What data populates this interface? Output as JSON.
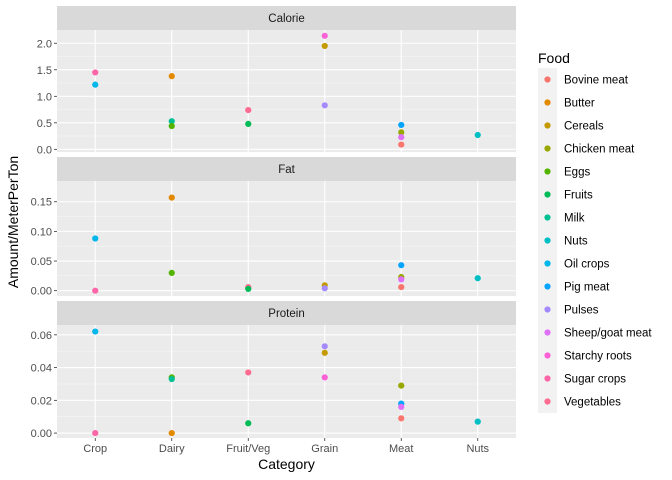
{
  "chart_data": {
    "type": "scatter",
    "layout": "facet_wrap_vertical",
    "xlabel": "Category",
    "ylabel": "Amount/MeterPerTon",
    "categories": [
      "Crop",
      "Dairy",
      "Fruit/Veg",
      "Grain",
      "Meat",
      "Nuts"
    ],
    "legend": {
      "title": "Food",
      "position": "right",
      "items": [
        {
          "name": "Bovine meat",
          "color": "#F8766D"
        },
        {
          "name": "Butter",
          "color": "#E38900"
        },
        {
          "name": "Cereals",
          "color": "#C49A00"
        },
        {
          "name": "Chicken meat",
          "color": "#99A800"
        },
        {
          "name": "Eggs",
          "color": "#53B400"
        },
        {
          "name": "Fruits",
          "color": "#00BC56"
        },
        {
          "name": "Milk",
          "color": "#00C094"
        },
        {
          "name": "Nuts",
          "color": "#00BFC4"
        },
        {
          "name": "Oil crops",
          "color": "#00B6EB"
        },
        {
          "name": "Pig meat",
          "color": "#06A4FF"
        },
        {
          "name": "Pulses",
          "color": "#A58AFF"
        },
        {
          "name": "Sheep/goat meat",
          "color": "#DF70F8"
        },
        {
          "name": "Starchy roots",
          "color": "#FB61D7"
        },
        {
          "name": "Sugar crops",
          "color": "#FF66A8"
        },
        {
          "name": "Vegetables",
          "color": "#FF6C91"
        }
      ]
    },
    "panels": [
      {
        "title": "Calorie",
        "ylim": [
          -0.05,
          2.25
        ],
        "yticks": [
          0.0,
          0.5,
          1.0,
          1.5,
          2.0
        ],
        "ytick_labels": [
          "0.0",
          "0.5",
          "1.0",
          "1.5",
          "2.0"
        ],
        "points": [
          {
            "x": "Crop",
            "y": 1.45,
            "food": "Sugar crops"
          },
          {
            "x": "Crop",
            "y": 1.22,
            "food": "Oil crops"
          },
          {
            "x": "Dairy",
            "y": 1.38,
            "food": "Butter"
          },
          {
            "x": "Dairy",
            "y": 0.53,
            "food": "Milk"
          },
          {
            "x": "Dairy",
            "y": 0.44,
            "food": "Eggs"
          },
          {
            "x": "Fruit/Veg",
            "y": 0.74,
            "food": "Vegetables"
          },
          {
            "x": "Fruit/Veg",
            "y": 0.48,
            "food": "Fruits"
          },
          {
            "x": "Grain",
            "y": 2.14,
            "food": "Starchy roots"
          },
          {
            "x": "Grain",
            "y": 1.95,
            "food": "Cereals"
          },
          {
            "x": "Grain",
            "y": 0.83,
            "food": "Pulses"
          },
          {
            "x": "Meat",
            "y": 0.46,
            "food": "Pig meat"
          },
          {
            "x": "Meat",
            "y": 0.32,
            "food": "Chicken meat"
          },
          {
            "x": "Meat",
            "y": 0.23,
            "food": "Sheep/goat meat"
          },
          {
            "x": "Meat",
            "y": 0.09,
            "food": "Bovine meat"
          },
          {
            "x": "Nuts",
            "y": 0.27,
            "food": "Nuts"
          }
        ]
      },
      {
        "title": "Fat",
        "ylim": [
          -0.009,
          0.185
        ],
        "yticks": [
          0.0,
          0.05,
          0.1,
          0.15
        ],
        "ytick_labels": [
          "0.00",
          "0.05",
          "0.10",
          "0.15"
        ],
        "points": [
          {
            "x": "Crop",
            "y": 0.088,
            "food": "Oil crops"
          },
          {
            "x": "Crop",
            "y": 0.0,
            "food": "Sugar crops"
          },
          {
            "x": "Dairy",
            "y": 0.157,
            "food": "Butter"
          },
          {
            "x": "Dairy",
            "y": 0.03,
            "food": "Eggs"
          },
          {
            "x": "Fruit/Veg",
            "y": 0.006,
            "food": "Vegetables"
          },
          {
            "x": "Fruit/Veg",
            "y": 0.003,
            "food": "Fruits"
          },
          {
            "x": "Grain",
            "y": 0.009,
            "food": "Cereals"
          },
          {
            "x": "Grain",
            "y": 0.004,
            "food": "Pulses"
          },
          {
            "x": "Meat",
            "y": 0.043,
            "food": "Pig meat"
          },
          {
            "x": "Meat",
            "y": 0.023,
            "food": "Chicken meat"
          },
          {
            "x": "Meat",
            "y": 0.019,
            "food": "Sheep/goat meat"
          },
          {
            "x": "Meat",
            "y": 0.006,
            "food": "Bovine meat"
          },
          {
            "x": "Nuts",
            "y": 0.021,
            "food": "Nuts"
          }
        ]
      },
      {
        "title": "Protein",
        "ylim": [
          -0.003,
          0.066
        ],
        "yticks": [
          0.0,
          0.02,
          0.04,
          0.06
        ],
        "ytick_labels": [
          "0.00",
          "0.02",
          "0.04",
          "0.06"
        ],
        "points": [
          {
            "x": "Crop",
            "y": 0.062,
            "food": "Oil crops"
          },
          {
            "x": "Crop",
            "y": 0.0,
            "food": "Sugar crops"
          },
          {
            "x": "Dairy",
            "y": 0.034,
            "food": "Eggs"
          },
          {
            "x": "Dairy",
            "y": 0.033,
            "food": "Milk"
          },
          {
            "x": "Dairy",
            "y": 0.0,
            "food": "Butter"
          },
          {
            "x": "Fruit/Veg",
            "y": 0.037,
            "food": "Vegetables"
          },
          {
            "x": "Fruit/Veg",
            "y": 0.006,
            "food": "Fruits"
          },
          {
            "x": "Grain",
            "y": 0.053,
            "food": "Pulses"
          },
          {
            "x": "Grain",
            "y": 0.049,
            "food": "Cereals"
          },
          {
            "x": "Grain",
            "y": 0.034,
            "food": "Starchy roots"
          },
          {
            "x": "Meat",
            "y": 0.029,
            "food": "Chicken meat"
          },
          {
            "x": "Meat",
            "y": 0.018,
            "food": "Pig meat"
          },
          {
            "x": "Meat",
            "y": 0.016,
            "food": "Sheep/goat meat"
          },
          {
            "x": "Meat",
            "y": 0.009,
            "food": "Bovine meat"
          },
          {
            "x": "Nuts",
            "y": 0.007,
            "food": "Nuts"
          }
        ]
      }
    ],
    "grid": true
  }
}
